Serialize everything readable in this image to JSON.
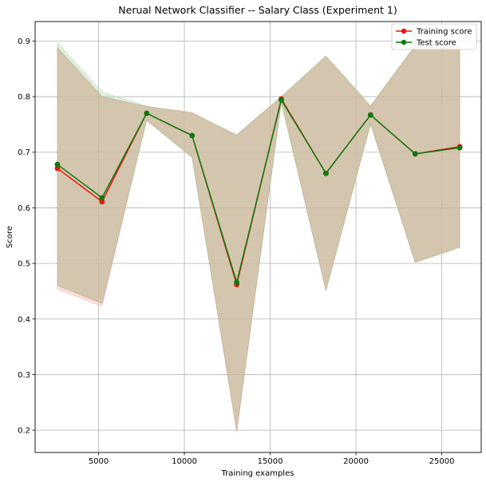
{
  "chart_data": {
    "type": "line",
    "title": "Nerual Network Classifier -- Salary Class (Experiment 1)",
    "xlabel": "Training examples",
    "ylabel": "Score",
    "xlim": [
      1300,
      27300
    ],
    "ylim": [
      0.16,
      0.935
    ],
    "xticks": [
      5000,
      10000,
      15000,
      20000,
      25000
    ],
    "yticks": [
      0.2,
      0.3,
      0.4,
      0.5,
      0.6,
      0.7,
      0.8,
      0.9
    ],
    "grid": true,
    "legend": "top-right",
    "x": [
      2600,
      5200,
      7800,
      10450,
      13050,
      15650,
      18250,
      20850,
      23450,
      26050
    ],
    "series": [
      {
        "name": "Training score",
        "color": "#e8150f",
        "values": [
          0.671,
          0.611,
          0.77,
          0.73,
          0.462,
          0.796,
          0.662,
          0.767,
          0.697,
          0.71
        ],
        "band_lower": [
          0.454,
          0.423,
          0.758,
          0.692,
          0.196,
          0.793,
          0.451,
          0.752,
          0.502,
          0.53
        ],
        "band_upper": [
          0.888,
          0.8,
          0.782,
          0.772,
          0.73,
          0.8,
          0.873,
          0.782,
          0.892,
          0.89
        ],
        "band_color": "#ffb3b3"
      },
      {
        "name": "Test score",
        "color": "#0d7a0d",
        "values": [
          0.678,
          0.618,
          0.77,
          0.73,
          0.466,
          0.794,
          0.662,
          0.767,
          0.697,
          0.708
        ],
        "band_lower": [
          0.46,
          0.428,
          0.757,
          0.69,
          0.2,
          0.788,
          0.451,
          0.75,
          0.502,
          0.528
        ],
        "band_upper": [
          0.897,
          0.808,
          0.783,
          0.77,
          0.732,
          0.8,
          0.873,
          0.784,
          0.892,
          0.888
        ],
        "band_color": "#b3dfb3"
      }
    ],
    "overlap_band_color": "#c9a88c"
  }
}
